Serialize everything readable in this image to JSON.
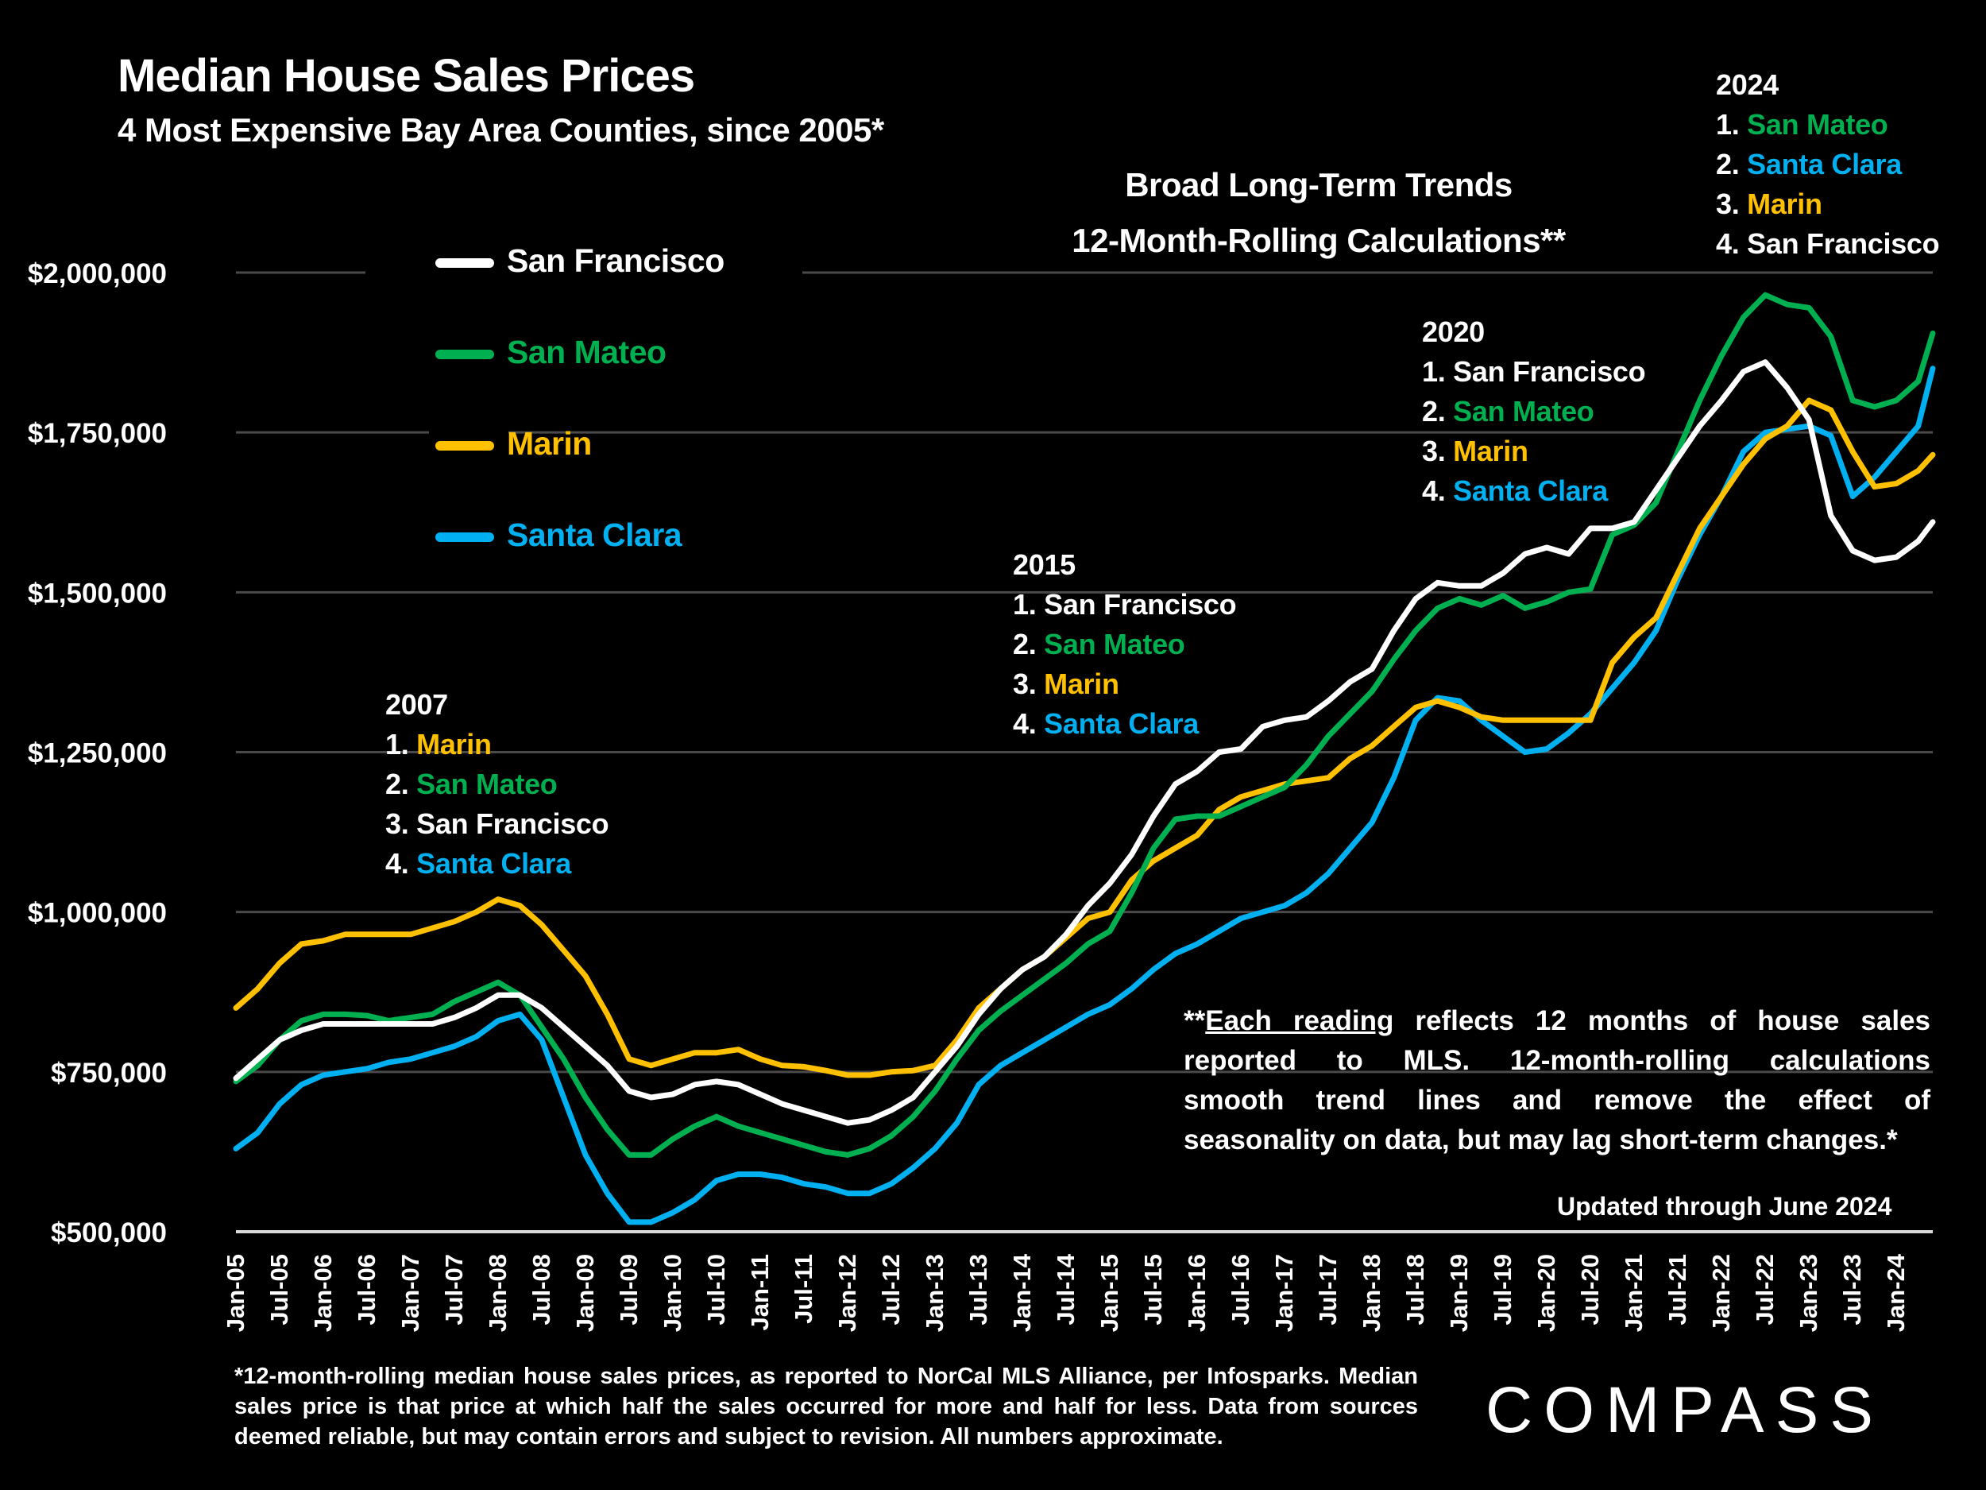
{
  "header": {
    "title": "Median House Sales Prices",
    "subtitle": "4 Most Expensive Bay Area Counties, since 2005*",
    "trend_title_line1": "Broad Long-Term Trends",
    "trend_title_line2": "12-Month-Rolling Calculations**"
  },
  "colors": {
    "San Francisco": "#ffffff",
    "San Mateo": "#00b050",
    "Marin": "#ffc000",
    "Santa Clara": "#00b0f0",
    "grid": "#4a4a4a",
    "baseline": "#d9d9d9"
  },
  "rankings": [
    {
      "year": "2007",
      "items": [
        {
          "num": "1.",
          "name": "Marin"
        },
        {
          "num": "2.",
          "name": "San Mateo"
        },
        {
          "num": "3.",
          "name": "San Francisco"
        },
        {
          "num": "4.",
          "name": "Santa Clara"
        }
      ]
    },
    {
      "year": "2015",
      "items": [
        {
          "num": "1.",
          "name": "San Francisco"
        },
        {
          "num": "2.",
          "name": "San Mateo"
        },
        {
          "num": "3.",
          "name": "Marin"
        },
        {
          "num": "4.",
          "name": "Santa Clara"
        }
      ]
    },
    {
      "year": "2020",
      "items": [
        {
          "num": "1.",
          "name": "San Francisco"
        },
        {
          "num": "2.",
          "name": "San Mateo"
        },
        {
          "num": "3.",
          "name": "Marin"
        },
        {
          "num": "4.",
          "name": "Santa Clara"
        }
      ]
    },
    {
      "year": "2024",
      "items": [
        {
          "num": "1.",
          "name": "San Mateo"
        },
        {
          "num": "2.",
          "name": "Santa Clara"
        },
        {
          "num": "3.",
          "name": "Marin"
        },
        {
          "num": "4.",
          "name": "San Francisco"
        }
      ]
    }
  ],
  "note": {
    "prefix": "**",
    "underlined": "Each reading",
    "line1_rest": " reflects 12 months of house sales",
    "line2": "reported to MLS. 12-month-rolling calculations",
    "line3": "smooth trend lines and remove the effect of",
    "line4": "seasonality on data, but may lag short-term changes.*"
  },
  "updated": "Updated through June 2024",
  "footnote": "*12-month-rolling median house sales prices, as reported to NorCal MLS Alliance, per Infosparks. Median sales price is that price at which half the sales occurred for more and half for less. Data from sources deemed reliable, but may contain errors and subject to revision. All numbers approximate.",
  "logo": "COMPASS",
  "chart_data": {
    "type": "line",
    "title": "Median House Sales Prices",
    "subtitle": "4 Most Expensive Bay Area Counties, since 2005*",
    "xlabel": "",
    "ylabel": "",
    "ylim": [
      500000,
      2000000
    ],
    "grid": true,
    "legend_position": "top-left",
    "y_ticks": [
      500000,
      750000,
      1000000,
      1250000,
      1500000,
      1750000,
      2000000
    ],
    "y_tick_labels": [
      "$500,000",
      "$750,000",
      "$1,000,000",
      "$1,250,000",
      "$1,500,000",
      "$1,750,000",
      "$2,000,000"
    ],
    "x_tick_labels": [
      "Jan-05",
      "Jul-05",
      "Jan-06",
      "Jul-06",
      "Jan-07",
      "Jul-07",
      "Jan-08",
      "Jul-08",
      "Jan-09",
      "Jul-09",
      "Jan-10",
      "Jul-10",
      "Jan-11",
      "Jul-11",
      "Jan-12",
      "Jul-12",
      "Jan-13",
      "Jul-13",
      "Jan-14",
      "Jul-14",
      "Jan-15",
      "Jul-15",
      "Jan-16",
      "Jul-16",
      "Jan-17",
      "Jul-17",
      "Jan-18",
      "Jul-18",
      "Jan-19",
      "Jul-19",
      "Jan-20",
      "Jul-20",
      "Jan-21",
      "Jul-21",
      "Jan-22",
      "Jul-22",
      "Jan-23",
      "Jul-23",
      "Jan-24"
    ],
    "x_range": [
      "Jan-05",
      "Jun-24"
    ],
    "x": [
      "Jan-05",
      "Apr-05",
      "Jul-05",
      "Oct-05",
      "Jan-06",
      "Apr-06",
      "Jul-06",
      "Oct-06",
      "Jan-07",
      "Apr-07",
      "Jul-07",
      "Oct-07",
      "Jan-08",
      "Apr-08",
      "Jul-08",
      "Oct-08",
      "Jan-09",
      "Apr-09",
      "Jul-09",
      "Oct-09",
      "Jan-10",
      "Apr-10",
      "Jul-10",
      "Oct-10",
      "Jan-11",
      "Apr-11",
      "Jul-11",
      "Oct-11",
      "Jan-12",
      "Apr-12",
      "Jul-12",
      "Oct-12",
      "Jan-13",
      "Apr-13",
      "Jul-13",
      "Oct-13",
      "Jan-14",
      "Apr-14",
      "Jul-14",
      "Oct-14",
      "Jan-15",
      "Apr-15",
      "Jul-15",
      "Oct-15",
      "Jan-16",
      "Apr-16",
      "Jul-16",
      "Oct-16",
      "Jan-17",
      "Apr-17",
      "Jul-17",
      "Oct-17",
      "Jan-18",
      "Apr-18",
      "Jul-18",
      "Oct-18",
      "Jan-19",
      "Apr-19",
      "Jul-19",
      "Oct-19",
      "Jan-20",
      "Apr-20",
      "Jul-20",
      "Oct-20",
      "Jan-21",
      "Apr-21",
      "Jul-21",
      "Oct-21",
      "Jan-22",
      "Apr-22",
      "Jul-22",
      "Oct-22",
      "Jan-23",
      "Apr-23",
      "Jul-23",
      "Oct-23",
      "Jan-24",
      "Apr-24",
      "Jun-24"
    ],
    "series": [
      {
        "name": "San Francisco",
        "values": [
          740000,
          770000,
          800000,
          815000,
          825000,
          825000,
          825000,
          825000,
          825000,
          825000,
          835000,
          850000,
          870000,
          870000,
          850000,
          820000,
          790000,
          760000,
          720000,
          710000,
          715000,
          730000,
          735000,
          730000,
          715000,
          700000,
          690000,
          680000,
          670000,
          675000,
          690000,
          710000,
          750000,
          790000,
          840000,
          880000,
          910000,
          930000,
          965000,
          1010000,
          1045000,
          1090000,
          1150000,
          1200000,
          1220000,
          1250000,
          1255000,
          1290000,
          1300000,
          1305000,
          1330000,
          1360000,
          1380000,
          1440000,
          1490000,
          1515000,
          1510000,
          1510000,
          1530000,
          1560000,
          1570000,
          1560000,
          1600000,
          1600000,
          1610000,
          1660000,
          1710000,
          1760000,
          1800000,
          1845000,
          1860000,
          1820000,
          1770000,
          1620000,
          1565000,
          1550000,
          1555000,
          1580000,
          1610000
        ]
      },
      {
        "name": "San Mateo",
        "values": [
          735000,
          760000,
          800000,
          830000,
          840000,
          840000,
          838000,
          830000,
          835000,
          840000,
          860000,
          875000,
          890000,
          870000,
          820000,
          770000,
          710000,
          660000,
          620000,
          620000,
          645000,
          665000,
          680000,
          665000,
          655000,
          645000,
          635000,
          625000,
          620000,
          630000,
          650000,
          680000,
          720000,
          770000,
          815000,
          845000,
          870000,
          895000,
          920000,
          950000,
          970000,
          1030000,
          1100000,
          1145000,
          1150000,
          1150000,
          1165000,
          1180000,
          1195000,
          1230000,
          1275000,
          1310000,
          1345000,
          1395000,
          1440000,
          1475000,
          1490000,
          1480000,
          1495000,
          1475000,
          1485000,
          1500000,
          1505000,
          1590000,
          1605000,
          1640000,
          1720000,
          1800000,
          1870000,
          1930000,
          1965000,
          1950000,
          1945000,
          1900000,
          1800000,
          1790000,
          1800000,
          1830000,
          1905000
        ]
      },
      {
        "name": "Marin",
        "values": [
          850000,
          880000,
          920000,
          950000,
          955000,
          965000,
          965000,
          965000,
          965000,
          975000,
          985000,
          1000000,
          1020000,
          1010000,
          980000,
          940000,
          900000,
          840000,
          770000,
          760000,
          770000,
          780000,
          780000,
          785000,
          770000,
          760000,
          758000,
          752000,
          745000,
          745000,
          750000,
          752000,
          760000,
          800000,
          850000,
          880000,
          910000,
          930000,
          960000,
          990000,
          1000000,
          1050000,
          1080000,
          1100000,
          1120000,
          1160000,
          1180000,
          1190000,
          1200000,
          1205000,
          1210000,
          1240000,
          1260000,
          1290000,
          1320000,
          1330000,
          1320000,
          1305000,
          1300000,
          1300000,
          1300000,
          1300000,
          1300000,
          1390000,
          1430000,
          1460000,
          1530000,
          1600000,
          1650000,
          1700000,
          1740000,
          1760000,
          1800000,
          1785000,
          1720000,
          1665000,
          1670000,
          1690000,
          1715000
        ]
      },
      {
        "name": "Santa Clara",
        "values": [
          630000,
          655000,
          700000,
          730000,
          745000,
          750000,
          755000,
          765000,
          770000,
          780000,
          790000,
          805000,
          830000,
          840000,
          800000,
          710000,
          620000,
          560000,
          515000,
          515000,
          530000,
          550000,
          580000,
          590000,
          590000,
          585000,
          575000,
          570000,
          560000,
          560000,
          575000,
          600000,
          630000,
          670000,
          730000,
          760000,
          780000,
          800000,
          820000,
          840000,
          855000,
          880000,
          910000,
          935000,
          950000,
          970000,
          990000,
          1000000,
          1010000,
          1030000,
          1060000,
          1100000,
          1140000,
          1210000,
          1300000,
          1335000,
          1330000,
          1300000,
          1275000,
          1250000,
          1255000,
          1280000,
          1310000,
          1350000,
          1390000,
          1440000,
          1520000,
          1590000,
          1650000,
          1720000,
          1750000,
          1755000,
          1760000,
          1745000,
          1650000,
          1680000,
          1720000,
          1760000,
          1850000
        ]
      }
    ]
  }
}
